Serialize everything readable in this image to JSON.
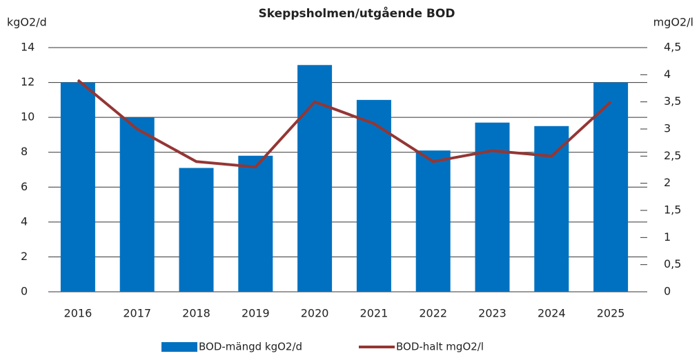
{
  "chart_data": {
    "type": "bar",
    "title": "Skeppsholmen/utgående BOD",
    "y_label": "kgO2/d",
    "y2_label": "mgO2/l",
    "categories": [
      "2016",
      "2017",
      "2018",
      "2019",
      "2020",
      "2021",
      "2022",
      "2023",
      "2024",
      "2025"
    ],
    "series": [
      {
        "name": "BOD-mängd kgO2/d",
        "type": "bar",
        "color": "#0071c0",
        "values": [
          12,
          10,
          7.1,
          7.8,
          13,
          11,
          8.1,
          9.7,
          9.5,
          12
        ]
      },
      {
        "name": "BOD-halt mgO2/l",
        "type": "line",
        "axis": "y2",
        "color": "#943634",
        "values": [
          3.9,
          3.0,
          2.4,
          2.3,
          3.5,
          3.1,
          2.4,
          2.6,
          2.5,
          3.5
        ]
      }
    ],
    "ylim": [
      0,
      14
    ],
    "yticks": [
      0,
      2,
      4,
      6,
      8,
      10,
      12,
      14
    ],
    "y2lim": [
      0,
      4.5
    ],
    "y2ticks": [
      0,
      {
        "value": 0.5,
        "label": "0,5"
      },
      1,
      {
        "value": 1.5,
        "label": "1,5"
      },
      2,
      {
        "value": 2.5,
        "label": "2,5"
      },
      3,
      {
        "value": 3.5,
        "label": "3,5"
      },
      4,
      {
        "value": 4.5,
        "label": "4,5"
      }
    ],
    "grid": true,
    "legend": "bottom"
  }
}
